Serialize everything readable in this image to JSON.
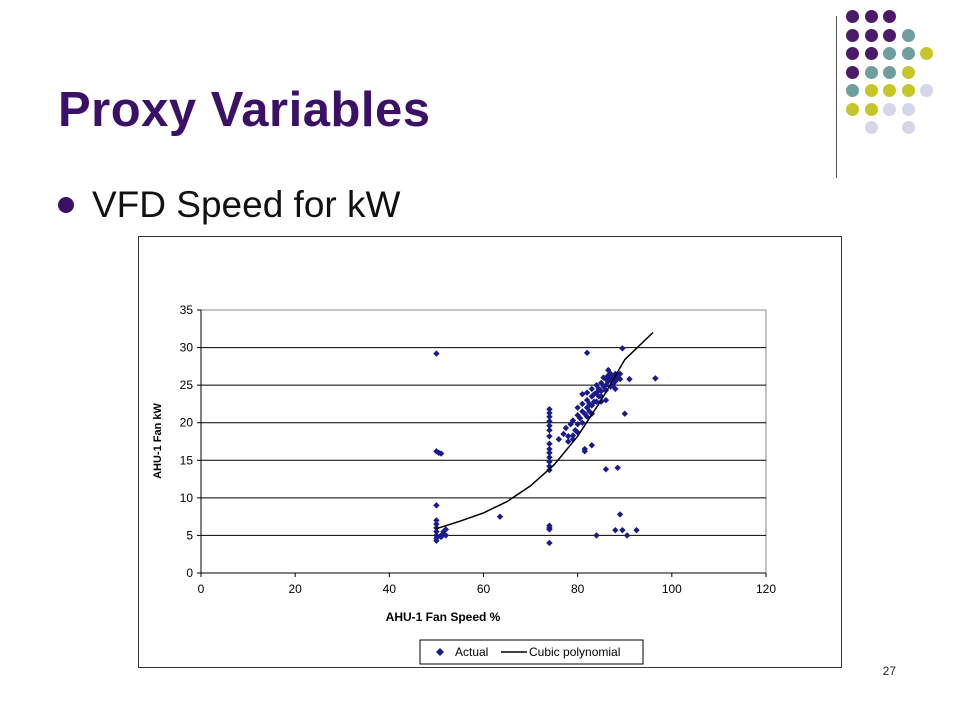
{
  "slide": {
    "title": "Proxy Variables",
    "bullet": "VFD Speed for kW",
    "page_number": "27"
  },
  "decoration": {
    "colors": {
      "purple": "#4b1a6a",
      "teal": "#6f9e9e",
      "yellow": "#c6c62a",
      "lavender": "#d6d6ea"
    },
    "grid": [
      [
        "purple",
        "purple",
        "purple",
        null,
        null
      ],
      [
        "purple",
        "purple",
        "purple",
        "teal",
        null
      ],
      [
        "purple",
        "purple",
        "teal",
        "teal",
        "yellow"
      ],
      [
        "purple",
        "teal",
        "teal",
        "yellow",
        null
      ],
      [
        "teal",
        "yellow",
        "yellow",
        "yellow",
        "lavender"
      ],
      [
        "yellow",
        "yellow",
        "lavender",
        "lavender",
        null
      ],
      [
        null,
        "lavender",
        null,
        "lavender",
        null
      ]
    ]
  },
  "chart_data": {
    "type": "scatter",
    "xlabel": "AHU-1 Fan Speed %",
    "ylabel": "AHU-1 Fan kW",
    "xlim": [
      0,
      120
    ],
    "ylim": [
      0,
      35
    ],
    "xticks": [
      0,
      20,
      40,
      60,
      80,
      100,
      120
    ],
    "yticks": [
      0,
      5,
      10,
      15,
      20,
      25,
      30,
      35
    ],
    "grid": "horizontal",
    "legend_position": "bottom",
    "marker_color": "#1a1a8c",
    "line_color": "#000000",
    "series": [
      {
        "name": "Actual",
        "points": [
          [
            50,
            29.2
          ],
          [
            50,
            16.2
          ],
          [
            50.5,
            16
          ],
          [
            51,
            15.9
          ],
          [
            50,
            9
          ],
          [
            50,
            7
          ],
          [
            50,
            6.5
          ],
          [
            50,
            6
          ],
          [
            50,
            5.5
          ],
          [
            50,
            5
          ],
          [
            50,
            4.6
          ],
          [
            50,
            4.3
          ],
          [
            51,
            5
          ],
          [
            51.5,
            5.5
          ],
          [
            52,
            5.8
          ],
          [
            52,
            5
          ],
          [
            51,
            4.8
          ],
          [
            63.5,
            7.5
          ],
          [
            74,
            21.8
          ],
          [
            74,
            21.3
          ],
          [
            74,
            20.8
          ],
          [
            74,
            20.2
          ],
          [
            74,
            19.6
          ],
          [
            74,
            19
          ],
          [
            74,
            18.2
          ],
          [
            74,
            17.2
          ],
          [
            74,
            16.5
          ],
          [
            74,
            16
          ],
          [
            74,
            15.4
          ],
          [
            74,
            14.8
          ],
          [
            74,
            14.2
          ],
          [
            74,
            13.7
          ],
          [
            74,
            6.3
          ],
          [
            74,
            6
          ],
          [
            74,
            5.8
          ],
          [
            74,
            4
          ],
          [
            76,
            17.8
          ],
          [
            77,
            18.5
          ],
          [
            77.5,
            19.3
          ],
          [
            78,
            17.5
          ],
          [
            78,
            18.2
          ],
          [
            78.5,
            19.8
          ],
          [
            79,
            18.3
          ],
          [
            79,
            17.8
          ],
          [
            79,
            20.3
          ],
          [
            79.5,
            19
          ],
          [
            80,
            18.7
          ],
          [
            80,
            19.8
          ],
          [
            80,
            21
          ],
          [
            80,
            22
          ],
          [
            80.5,
            20.6
          ],
          [
            81,
            20
          ],
          [
            81,
            21.5
          ],
          [
            81,
            22.5
          ],
          [
            81,
            23.8
          ],
          [
            81.5,
            21.2
          ],
          [
            81.5,
            16.5
          ],
          [
            81.5,
            16.2
          ],
          [
            82,
            22
          ],
          [
            82,
            23
          ],
          [
            82,
            20.8
          ],
          [
            82,
            24
          ],
          [
            82.5,
            22.5
          ],
          [
            82.5,
            21.5
          ],
          [
            83,
            22.3
          ],
          [
            83,
            23.5
          ],
          [
            83,
            24.5
          ],
          [
            83,
            21.2
          ],
          [
            83,
            17
          ],
          [
            83.5,
            22.8
          ],
          [
            83.5,
            23.8
          ],
          [
            84,
            24
          ],
          [
            84,
            25
          ],
          [
            84,
            22.8
          ],
          [
            84.5,
            23.5
          ],
          [
            84.5,
            24.5
          ],
          [
            85,
            24.2
          ],
          [
            85,
            25.3
          ],
          [
            85,
            23.5
          ],
          [
            85,
            22.8
          ],
          [
            85.5,
            24.8
          ],
          [
            85.5,
            26
          ],
          [
            86,
            25
          ],
          [
            86,
            25.8
          ],
          [
            86,
            24.3
          ],
          [
            86,
            23
          ],
          [
            86.5,
            25.5
          ],
          [
            86.5,
            26.3
          ],
          [
            86.5,
            27
          ],
          [
            87,
            25.8
          ],
          [
            87,
            24.8
          ],
          [
            87,
            26.5
          ],
          [
            87.5,
            26
          ],
          [
            87.5,
            25
          ],
          [
            88,
            26.5
          ],
          [
            88,
            25.5
          ],
          [
            88,
            24.5
          ],
          [
            88.5,
            26
          ],
          [
            89,
            26.5
          ],
          [
            89,
            25.8
          ],
          [
            82,
            29.3
          ],
          [
            86,
            13.8
          ],
          [
            88.5,
            14
          ],
          [
            89.5,
            29.9
          ],
          [
            90,
            21.2
          ],
          [
            91,
            25.8
          ],
          [
            96.5,
            25.9
          ],
          [
            84,
            5
          ],
          [
            88,
            5.7
          ],
          [
            89,
            7.8
          ],
          [
            89.5,
            5.7
          ],
          [
            90.5,
            5
          ],
          [
            92.5,
            5.7
          ]
        ]
      },
      {
        "name": "Cubic polynomial",
        "line": [
          [
            50,
            5.9
          ],
          [
            55,
            6.9
          ],
          [
            60,
            8.0
          ],
          [
            65,
            9.5
          ],
          [
            70,
            11.6
          ],
          [
            75,
            14.4
          ],
          [
            80,
            18.2
          ],
          [
            85,
            23.0
          ],
          [
            90,
            28.4
          ],
          [
            96,
            32.0
          ]
        ]
      }
    ]
  }
}
